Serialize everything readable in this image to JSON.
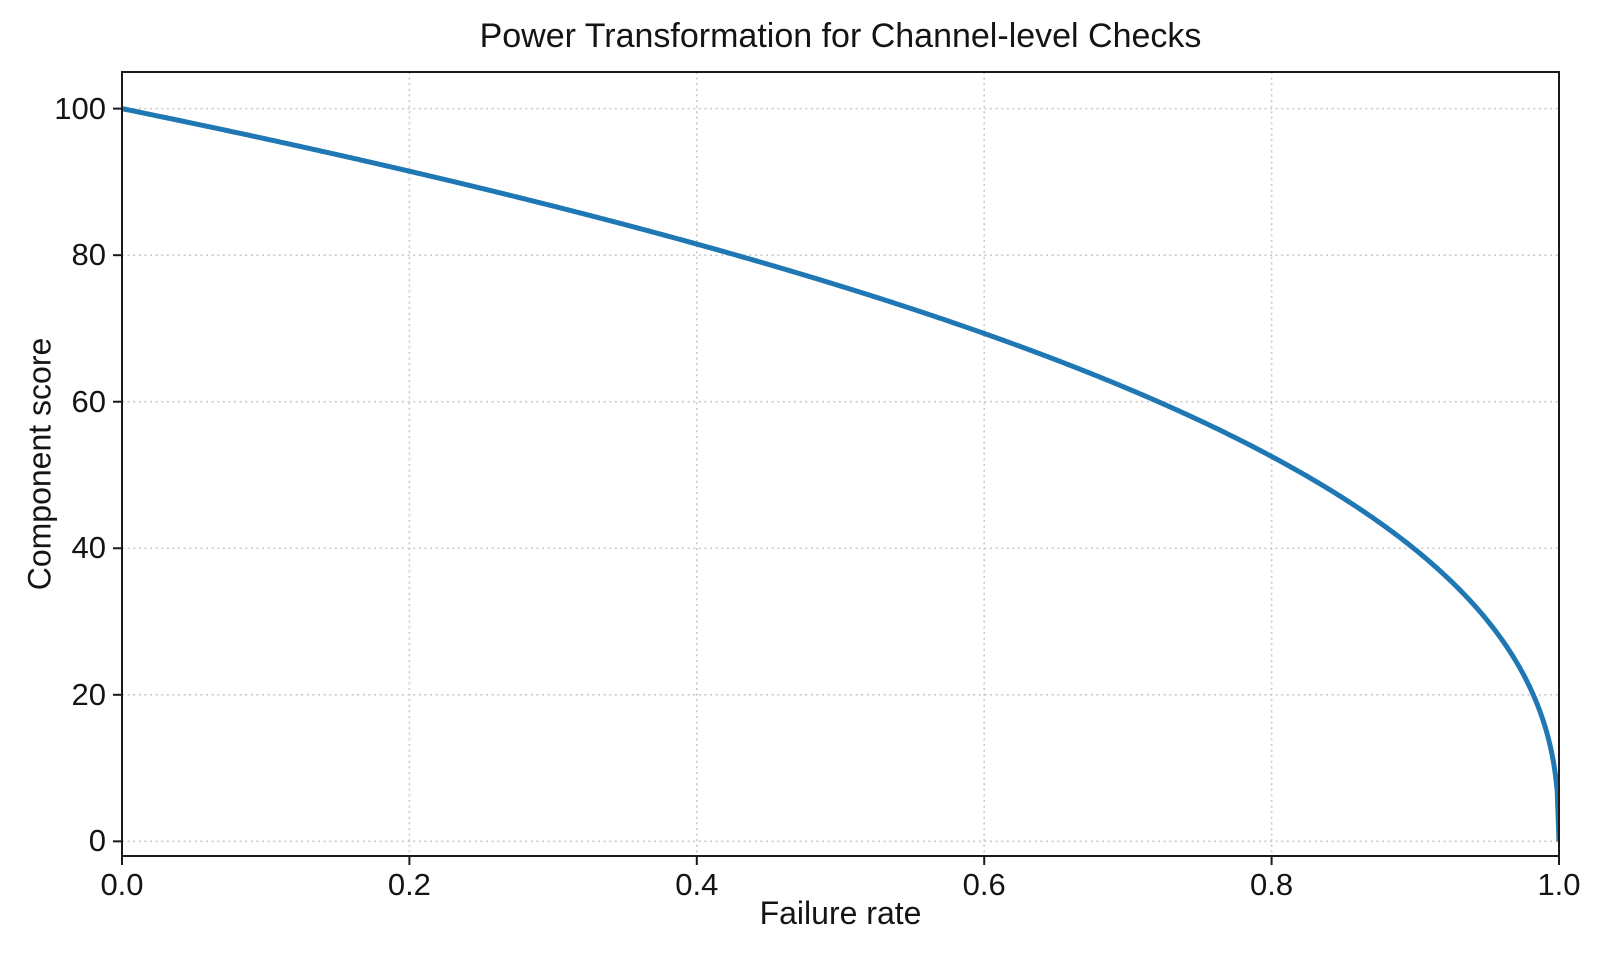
{
  "chart_data": {
    "type": "line",
    "title": "Power Transformation for Channel-level Checks",
    "xlabel": "Failure rate",
    "ylabel": "Component score",
    "xlim": [
      0.0,
      1.0
    ],
    "ylim": [
      -2,
      105
    ],
    "xticks": [
      0.0,
      0.2,
      0.4,
      0.6,
      0.8,
      1.0
    ],
    "xtick_labels": [
      "0.0",
      "0.2",
      "0.4",
      "0.6",
      "0.8",
      "1.0"
    ],
    "yticks": [
      0,
      20,
      40,
      60,
      80,
      100
    ],
    "ytick_labels": [
      "0",
      "20",
      "40",
      "60",
      "80",
      "100"
    ],
    "grid": true,
    "grid_style": "dotted",
    "grid_color": "#c9c9c9",
    "legend_position": "none",
    "background_color": "#ffffff",
    "text_color": "#141414",
    "axis_color": "#1a1a1a",
    "series": [
      {
        "name": "Component score",
        "color": "#1f77b4",
        "line_width": 5,
        "formula": "y = 100 * (1 - x)^0.4",
        "power": 0.4,
        "scale": 100,
        "x": [
          0,
          0.05,
          0.1,
          0.15,
          0.2,
          0.25,
          0.3,
          0.35,
          0.4,
          0.45,
          0.5,
          0.55,
          0.6,
          0.65,
          0.7,
          0.75,
          0.8,
          0.85,
          0.9,
          0.95,
          0.98,
          0.99,
          1.0
        ],
        "y": [
          100,
          98.0,
          95.9,
          93.7,
          91.5,
          89.1,
          86.7,
          84.2,
          81.5,
          78.7,
          75.8,
          72.7,
          69.3,
          65.7,
          61.8,
          57.4,
          52.5,
          46.8,
          39.8,
          30.2,
          20.9,
          15.8,
          0
        ]
      }
    ]
  }
}
